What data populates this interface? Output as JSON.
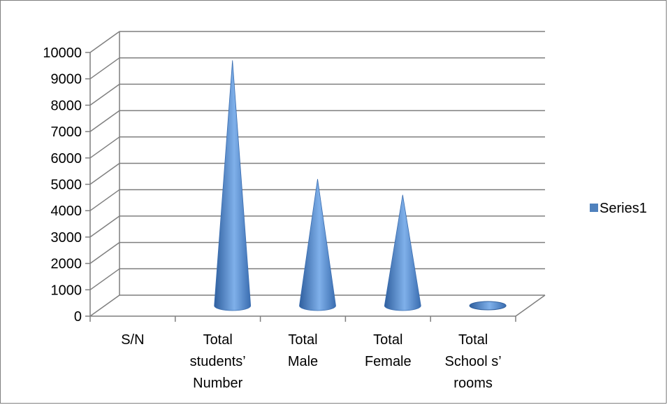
{
  "chart_data": {
    "type": "bar",
    "style": "3d-cone",
    "categories": [
      [
        "S/N"
      ],
      [
        "Total",
        "students’",
        "Number"
      ],
      [
        "Total",
        "Male"
      ],
      [
        "Total",
        "Female"
      ],
      [
        "Total",
        "School s’",
        "rooms"
      ]
    ],
    "series": [
      {
        "name": "Series1",
        "values": [
          0,
          9700,
          5200,
          4600,
          0
        ]
      }
    ],
    "title": "",
    "xlabel": "",
    "ylabel": "",
    "ylim": [
      0,
      10000
    ],
    "yticks": [
      "0",
      "1000",
      "2000",
      "3000",
      "4000",
      "5000",
      "6000",
      "7000",
      "8000",
      "9000",
      "10000"
    ],
    "grid": true,
    "legend": "right",
    "colors": {
      "series": "#4f81bd",
      "grid": "#7f7f7f"
    }
  }
}
